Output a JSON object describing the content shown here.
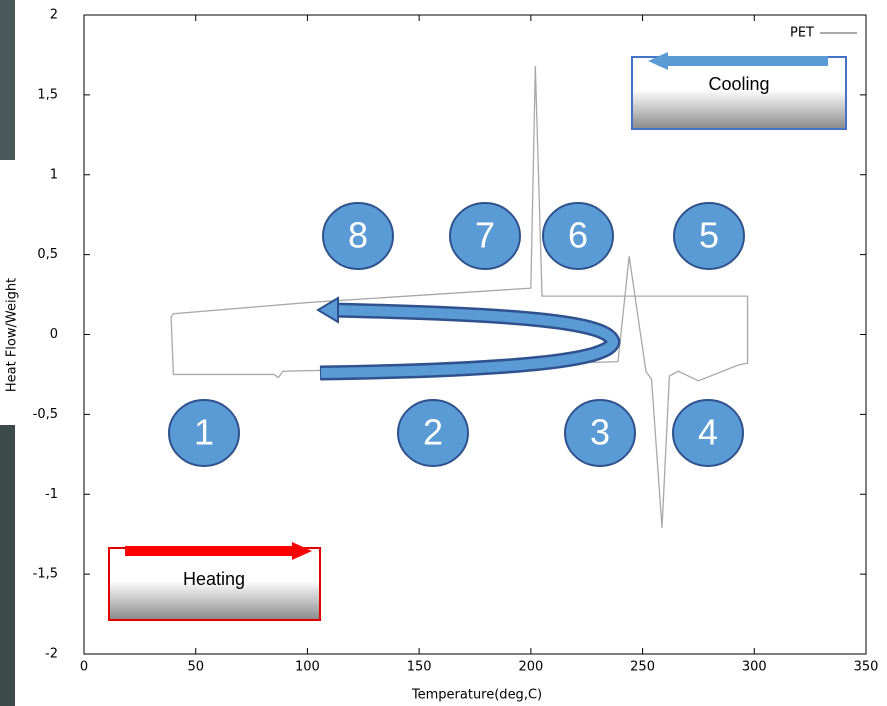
{
  "chart_data": {
    "type": "line",
    "xlabel": "Temperature(deg,C)",
    "ylabel": "Heat Flow/Weight",
    "x": [
      40,
      85,
      87,
      89,
      150,
      239,
      244,
      251.5,
      254,
      258.7,
      262,
      266,
      275,
      293,
      297,
      297,
      205,
      202,
      200,
      100,
      40,
      39,
      40
    ],
    "series": [
      {
        "name": "PET",
        "color": "#a8a8a8",
        "values": [
          -0.25,
          -0.25,
          -0.27,
          -0.23,
          -0.21,
          -0.17,
          0.49,
          -0.23,
          -0.28,
          -1.21,
          -0.26,
          -0.23,
          -0.29,
          -0.19,
          -0.18,
          0.24,
          0.24,
          1.68,
          0.29,
          0.2,
          0.13,
          0.11,
          -0.25
        ]
      }
    ],
    "xlim": [
      0,
      350
    ],
    "ylim": [
      -2,
      2
    ],
    "xticks": [
      0,
      50,
      100,
      150,
      200,
      250,
      300,
      350
    ],
    "yticks": [
      -2,
      {
        "value": -1.5,
        "label": "-1,5"
      },
      -1,
      {
        "value": -0.5,
        "label": "-0,5"
      },
      0,
      {
        "value": 0.5,
        "label": "0,5"
      },
      1,
      {
        "value": 1.5,
        "label": "1,5"
      },
      2
    ],
    "legend": "upper right",
    "annotations": [
      "1",
      "2",
      "3",
      "4",
      "5",
      "6",
      "7",
      "8",
      "Cooling",
      "Heating"
    ]
  }
}
